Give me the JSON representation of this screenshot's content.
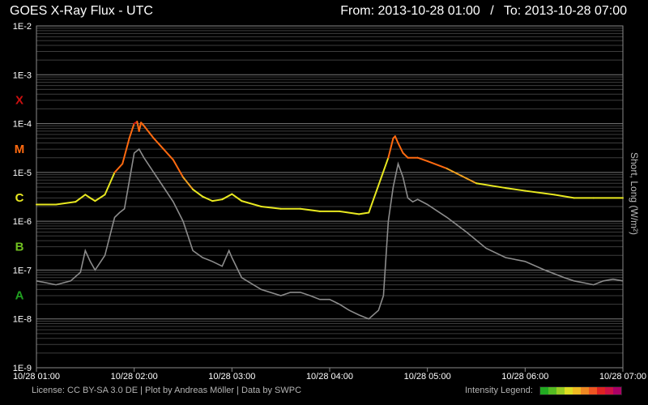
{
  "header": {
    "title": "GOES X-Ray Flux - UTC",
    "from_label": "From:",
    "from_value": "2013-10-28 01:00",
    "separator": "/",
    "to_label": "To:",
    "to_value": "2013-10-28 07:00"
  },
  "footer": {
    "license": "License: CC BY-SA 3.0 DE | Plot by Andreas Möller | Data by SWPC",
    "legend_label": "Intensity Legend:"
  },
  "colors": {
    "background": "#000000",
    "grid": "#5a5a5a",
    "long_channel": "#8c8c8c",
    "class_X": "#cc1010",
    "class_M": "#ff6a10",
    "class_C": "#e8e820",
    "class_B": "#70c020",
    "class_A": "#20a020",
    "intensity_scale": [
      "#22aa22",
      "#55bb22",
      "#99cc22",
      "#dddd22",
      "#eebb22",
      "#ee8822",
      "#ee5522",
      "#dd2222",
      "#cc1144",
      "#aa0066"
    ]
  },
  "chart_data": {
    "type": "line",
    "title": "GOES X-Ray Flux - UTC",
    "ylabel": "Short, Long (W/m²)",
    "y_scale": "log",
    "ylim": [
      1e-09,
      0.01
    ],
    "y_ticks": [
      "1E-2",
      "1E-3",
      "1E-4",
      "1E-5",
      "1E-6",
      "1E-7",
      "1E-8",
      "1E-9"
    ],
    "flare_classes": [
      {
        "label": "X",
        "flux": 0.0001
      },
      {
        "label": "M",
        "flux": 1e-05
      },
      {
        "label": "C",
        "flux": 1e-06
      },
      {
        "label": "B",
        "flux": 1e-07
      },
      {
        "label": "A",
        "flux": 1e-08
      }
    ],
    "x_ticks": [
      "10/28 01:00",
      "10/28 02:00",
      "10/28 03:00",
      "10/28 04:00",
      "10/28 05:00",
      "10/28 06:00",
      "10/28 07:00"
    ],
    "x_range_hours": [
      1,
      7
    ],
    "grid": true,
    "series": [
      {
        "name": "Short",
        "x_hours": [
          1.0,
          1.2,
          1.4,
          1.5,
          1.55,
          1.6,
          1.7,
          1.8,
          1.88,
          1.95,
          2.0,
          2.03,
          2.05,
          2.07,
          2.1,
          2.2,
          2.3,
          2.4,
          2.5,
          2.6,
          2.7,
          2.8,
          2.9,
          3.0,
          3.1,
          3.3,
          3.5,
          3.7,
          3.9,
          4.1,
          4.3,
          4.4,
          4.6,
          4.65,
          4.67,
          4.7,
          4.75,
          4.8,
          4.9,
          5.0,
          5.2,
          5.5,
          5.8,
          6.0,
          6.3,
          6.5,
          6.7,
          7.0
        ],
        "y_flux": [
          2.2e-06,
          2.2e-06,
          2.5e-06,
          3.5e-06,
          3e-06,
          2.6e-06,
          3.5e-06,
          1e-05,
          1.5e-05,
          5e-05,
          0.0001,
          0.00011,
          7e-05,
          0.000105,
          9e-05,
          5e-05,
          3e-05,
          1.8e-05,
          8e-06,
          4.5e-06,
          3.2e-06,
          2.6e-06,
          2.8e-06,
          3.6e-06,
          2.6e-06,
          2e-06,
          1.8e-06,
          1.8e-06,
          1.6e-06,
          1.6e-06,
          1.4e-06,
          1.5e-06,
          2e-05,
          5e-05,
          5.5e-05,
          4e-05,
          2.5e-05,
          2e-05,
          2e-05,
          1.7e-05,
          1.2e-05,
          6e-06,
          4.8e-06,
          4.2e-06,
          3.5e-06,
          3e-06,
          3e-06,
          3e-06
        ]
      },
      {
        "name": "Long",
        "x_hours": [
          1.0,
          1.1,
          1.2,
          1.35,
          1.45,
          1.5,
          1.55,
          1.6,
          1.7,
          1.8,
          1.85,
          1.9,
          2.0,
          2.05,
          2.1,
          2.2,
          2.3,
          2.4,
          2.5,
          2.6,
          2.7,
          2.8,
          2.9,
          2.97,
          3.0,
          3.1,
          3.3,
          3.5,
          3.6,
          3.7,
          3.8,
          3.9,
          4.0,
          4.1,
          4.2,
          4.3,
          4.4,
          4.5,
          4.55,
          4.6,
          4.65,
          4.7,
          4.75,
          4.8,
          4.85,
          4.9,
          5.0,
          5.2,
          5.4,
          5.6,
          5.8,
          6.0,
          6.2,
          6.4,
          6.5,
          6.6,
          6.7,
          6.8,
          6.9,
          7.0
        ],
        "y_flux": [
          6e-08,
          5.5e-08,
          5e-08,
          6e-08,
          9e-08,
          2.5e-07,
          1.5e-07,
          1e-07,
          2e-07,
          1.2e-06,
          1.5e-06,
          1.8e-06,
          2.5e-05,
          3e-05,
          2e-05,
          1e-05,
          5e-06,
          2.5e-06,
          1e-06,
          2.5e-07,
          1.8e-07,
          1.5e-07,
          1.2e-07,
          2.5e-07,
          1.8e-07,
          7e-08,
          4e-08,
          3e-08,
          3.5e-08,
          3.5e-08,
          3e-08,
          2.5e-08,
          2.5e-08,
          2e-08,
          1.5e-08,
          1.2e-08,
          1e-08,
          1.5e-08,
          3e-08,
          1e-06,
          5e-06,
          1.5e-05,
          8e-06,
          3e-06,
          2.5e-06,
          2.8e-06,
          2.2e-06,
          1.2e-06,
          6e-07,
          2.8e-07,
          1.8e-07,
          1.5e-07,
          1e-07,
          7e-08,
          6e-08,
          5.5e-08,
          5e-08,
          6e-08,
          6.5e-08,
          6e-08
        ]
      }
    ]
  }
}
